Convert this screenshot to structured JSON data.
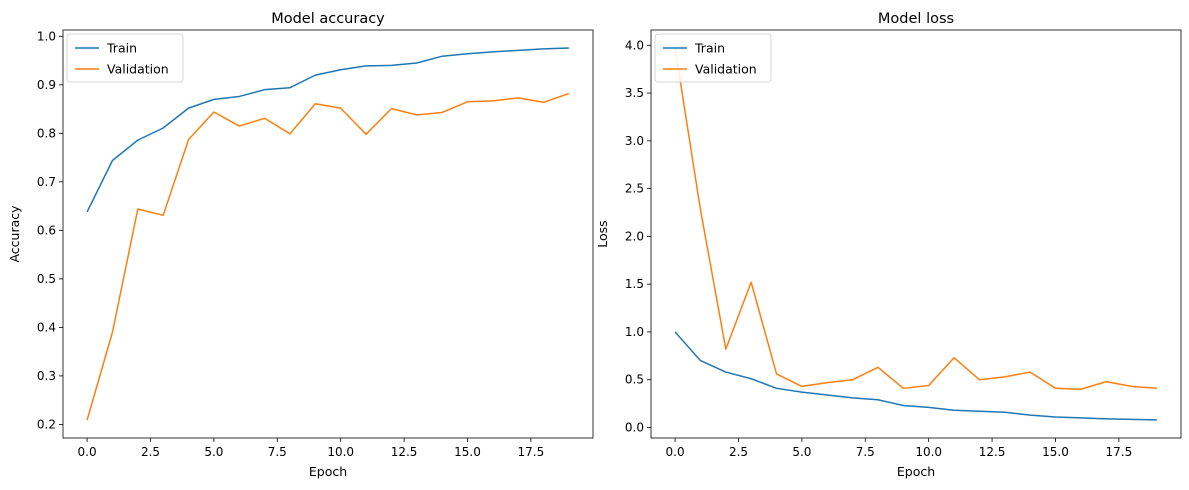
{
  "chart_data": [
    {
      "type": "line",
      "title": "Model accuracy",
      "xlabel": "Epoch",
      "ylabel": "Accuracy",
      "xlim": [
        -0.95,
        19.95
      ],
      "ylim": [
        0.172,
        1.013
      ],
      "xticks": [
        0.0,
        2.5,
        5.0,
        7.5,
        10.0,
        12.5,
        15.0,
        17.5
      ],
      "xtick_labels": [
        "0.0",
        "2.5",
        "5.0",
        "7.5",
        "10.0",
        "12.5",
        "15.0",
        "17.5"
      ],
      "yticks": [
        0.2,
        0.3,
        0.4,
        0.5,
        0.6,
        0.7,
        0.8,
        0.9,
        1.0
      ],
      "ytick_labels": [
        "0.2",
        "0.3",
        "0.4",
        "0.5",
        "0.6",
        "0.7",
        "0.8",
        "0.9",
        "1.0"
      ],
      "grid": false,
      "legend_position": "upper-left",
      "x": [
        0,
        1,
        2,
        3,
        4,
        5,
        6,
        7,
        8,
        9,
        10,
        11,
        12,
        13,
        14,
        15,
        16,
        17,
        18,
        19
      ],
      "series": [
        {
          "name": "Train",
          "color": "#1f77b4",
          "values": [
            0.638,
            0.744,
            0.786,
            0.811,
            0.852,
            0.87,
            0.876,
            0.89,
            0.894,
            0.92,
            0.931,
            0.939,
            0.94,
            0.945,
            0.959,
            0.964,
            0.968,
            0.971,
            0.974,
            0.976
          ]
        },
        {
          "name": "Validation",
          "color": "#ff7f0e",
          "values": [
            0.209,
            0.39,
            0.644,
            0.631,
            0.787,
            0.844,
            0.815,
            0.831,
            0.799,
            0.861,
            0.852,
            0.798,
            0.851,
            0.838,
            0.843,
            0.865,
            0.867,
            0.873,
            0.864,
            0.882
          ]
        }
      ]
    },
    {
      "type": "line",
      "title": "Model loss",
      "xlabel": "Epoch",
      "ylabel": "Loss",
      "xlim": [
        -0.95,
        19.95
      ],
      "ylim": [
        -0.11,
        4.16
      ],
      "xticks": [
        0.0,
        2.5,
        5.0,
        7.5,
        10.0,
        12.5,
        15.0,
        17.5
      ],
      "xtick_labels": [
        "0.0",
        "2.5",
        "5.0",
        "7.5",
        "10.0",
        "12.5",
        "15.0",
        "17.5"
      ],
      "yticks": [
        0.0,
        0.5,
        1.0,
        1.5,
        2.0,
        2.5,
        3.0,
        3.5,
        4.0
      ],
      "ytick_labels": [
        "0.0",
        "0.5",
        "1.0",
        "1.5",
        "2.0",
        "2.5",
        "3.0",
        "3.5",
        "4.0"
      ],
      "grid": false,
      "legend_position": "upper-left",
      "x": [
        0,
        1,
        2,
        3,
        4,
        5,
        6,
        7,
        8,
        9,
        10,
        11,
        12,
        13,
        14,
        15,
        16,
        17,
        18,
        19
      ],
      "series": [
        {
          "name": "Train",
          "color": "#1f77b4",
          "values": [
            1.0,
            0.7,
            0.58,
            0.51,
            0.41,
            0.37,
            0.34,
            0.31,
            0.29,
            0.23,
            0.21,
            0.18,
            0.17,
            0.16,
            0.13,
            0.11,
            0.1,
            0.09,
            0.085,
            0.08
          ]
        },
        {
          "name": "Validation",
          "color": "#ff7f0e",
          "values": [
            3.97,
            2.28,
            0.82,
            1.52,
            0.56,
            0.43,
            0.47,
            0.5,
            0.63,
            0.41,
            0.44,
            0.73,
            0.5,
            0.53,
            0.58,
            0.41,
            0.4,
            0.48,
            0.43,
            0.41
          ]
        }
      ]
    }
  ]
}
